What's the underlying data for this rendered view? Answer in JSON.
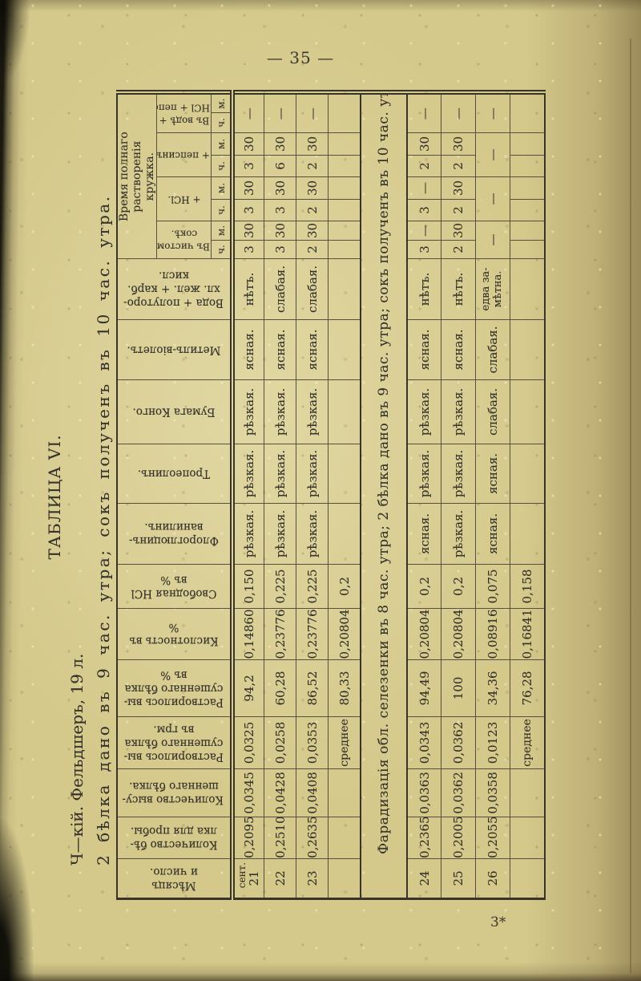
{
  "page": {
    "number": "— 35 —",
    "signature": "3*"
  },
  "heading": {
    "table_title": "ТАБЛИЦА VI.",
    "patient_line": "Ч—кій. Фельдшеръ, 19 л.",
    "experiment_line": "2 бѣлка дано въ 9 час. утра; сокъ полученъ въ 10 час. утра."
  },
  "table": {
    "columns": [
      {
        "label_lines": [
          "Мѣсяцъ",
          "и число."
        ]
      },
      {
        "label_lines": [
          "Количество бѣ-",
          "лка для пробы."
        ]
      },
      {
        "label_lines": [
          "Количество высу-",
          "шеннаго бѣлка."
        ]
      },
      {
        "label_lines": [
          "Растворилось вы-",
          "сушеннаго бѣлка",
          "въ грм."
        ]
      },
      {
        "label_lines": [
          "Растворилось вы-",
          "сушеннаго бѣлка",
          "въ %"
        ]
      },
      {
        "label_lines": [
          "Кислотность въ",
          "%"
        ]
      },
      {
        "label_lines": [
          "Свободная HCl",
          "въ %"
        ]
      },
      {
        "label_lines": [
          "Флороглюцинъ-",
          "ванилинъ."
        ]
      },
      {
        "label_lines": [
          "Тропеолинъ."
        ]
      },
      {
        "label_lines": [
          "Бумага Конго."
        ]
      },
      {
        "label_lines": [
          "Метилъ-віолетъ."
        ]
      },
      {
        "label_lines": [
          "Вода + полуторо-",
          "хл. жел. + карб.",
          "кисл."
        ]
      }
    ],
    "time_group": {
      "label_lines": [
        "Время полнаго растворенія",
        "кружка."
      ],
      "subcolumns": [
        {
          "label_lines": [
            "Въ чистомъ",
            "сокѣ."
          ]
        },
        {
          "label_lines": [
            "+ HCl."
          ]
        },
        {
          "label_lines": [
            "+ пепсинъ."
          ]
        },
        {
          "label_lines": [
            "Въ водѣ +",
            "HCl + пепс."
          ]
        }
      ],
      "hours_label": "ч.",
      "minutes_label": "м."
    },
    "section_divider": "Фарадизація обл. селезенки въ 8 час. утра; 2 бѣлка дано въ 9 час. утра; сокъ полученъ въ 10 час. утра.",
    "rows": [
      {
        "month": "сент.",
        "day": "21",
        "cells": [
          "0,2095",
          "0,0345",
          "0,0325",
          "94,2",
          "0,14860",
          "0,150",
          "рѣзкая.",
          "рѣзкая.",
          "рѣзкая.",
          "ясная.",
          "нѣтъ."
        ],
        "times": [
          [
            "3",
            "30"
          ],
          [
            "3",
            "30"
          ],
          [
            "3",
            "30"
          ],
          [
            "—"
          ]
        ]
      },
      {
        "day": "22",
        "cells": [
          "0,2510",
          "0,0428",
          "0,0258",
          "60,28",
          "0,23776",
          "0,225",
          "рѣзкая.",
          "рѣзкая.",
          "рѣзкая.",
          "ясная.",
          "слабая."
        ],
        "times": [
          [
            "3",
            "30"
          ],
          [
            "3",
            "30"
          ],
          [
            "6",
            "30"
          ],
          [
            "—"
          ]
        ]
      },
      {
        "day": "23",
        "cells": [
          "0,2635",
          "0,0408",
          "0,0353",
          "86,52",
          "0,23776",
          "0,225",
          "рѣзкая.",
          "рѣзкая.",
          "рѣзкая.",
          "ясная.",
          "слабая."
        ],
        "times": [
          [
            "2",
            "30"
          ],
          [
            "2",
            "30"
          ],
          [
            "2",
            "30"
          ],
          [
            "—"
          ]
        ]
      },
      {
        "day": "",
        "cells": [
          "",
          "",
          "среднее",
          "80,33",
          "0,20804",
          "0,2",
          "",
          "",
          "",
          "",
          ""
        ],
        "times": [
          [
            "",
            ""
          ],
          [
            "",
            ""
          ],
          [
            "",
            ""
          ],
          [
            ""
          ]
        ]
      },
      {
        "divider": true
      },
      {
        "day": "24",
        "cells": [
          "0,2365",
          "0,0363",
          "0,0343",
          "94,49",
          "0,20804",
          "0,2",
          "ясная.",
          "рѣзкая.",
          "рѣзкая.",
          "ясная.",
          "нѣтъ."
        ],
        "times": [
          [
            "3",
            "—"
          ],
          [
            "3",
            "—"
          ],
          [
            "2",
            "30"
          ],
          [
            "—"
          ]
        ]
      },
      {
        "day": "25",
        "cells": [
          "0,2005",
          "0,0362",
          "0,0362",
          "100",
          "0,20804",
          "0,2",
          "рѣзкая.",
          "рѣзкая.",
          "рѣзкая.",
          "ясная.",
          "нѣтъ."
        ],
        "times": [
          [
            "2",
            "30"
          ],
          [
            "2",
            "30"
          ],
          [
            "2",
            "30"
          ],
          [
            "—"
          ]
        ]
      },
      {
        "day": "26",
        "cells": [
          "0,2055",
          "0,0358",
          "0,0123",
          "34,36",
          "0,08916",
          "0,075",
          "ясная.",
          "ясная.",
          "слабая.",
          "слабая.",
          "едва за-\nмѣтна."
        ],
        "times": [
          [
            "—"
          ],
          [
            "—"
          ],
          [
            "—"
          ],
          [
            "—"
          ]
        ]
      },
      {
        "day": "",
        "cells": [
          "",
          "",
          "среднее",
          "76,28",
          "0,16841",
          "0,158",
          "",
          "",
          "",
          "",
          ""
        ],
        "times": [
          [
            "",
            ""
          ],
          [
            "",
            ""
          ],
          [
            "",
            ""
          ],
          [
            ""
          ]
        ]
      }
    ]
  }
}
